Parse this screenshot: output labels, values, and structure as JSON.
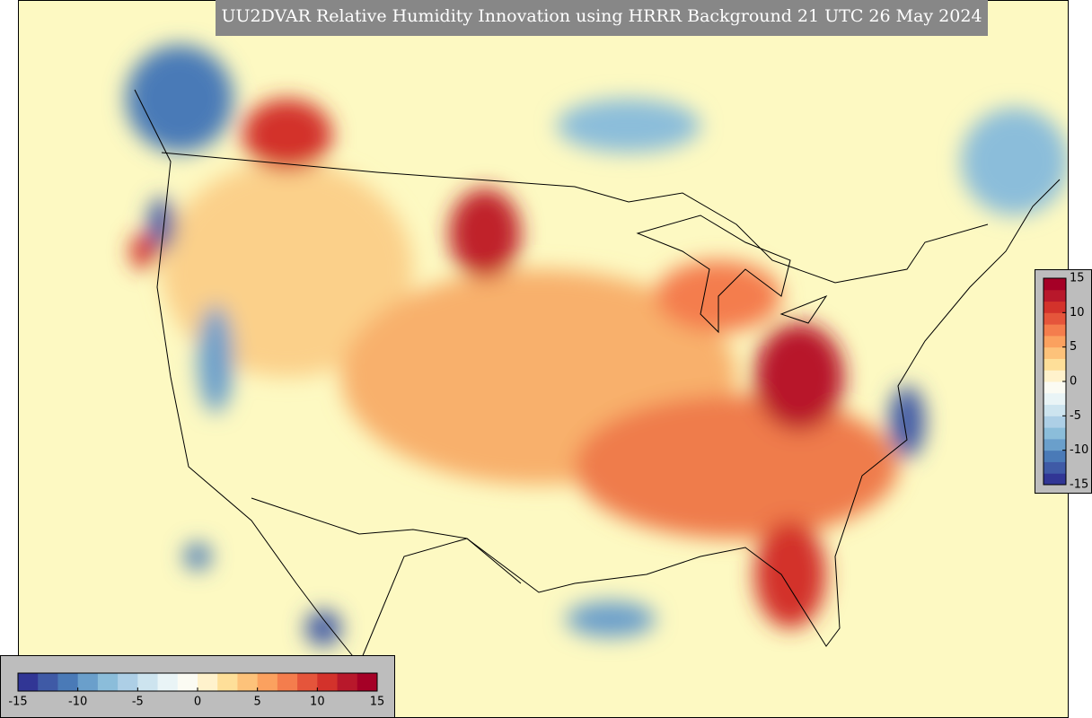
{
  "title": "UU2DVAR Relative Humidity Innovation using HRRR Background 21 UTC 26 May 2024",
  "horizontal_colorbar": {
    "limits": [
      -15,
      15
    ],
    "ticks": [
      -15,
      -10,
      -5,
      0,
      5,
      10,
      15
    ]
  },
  "vertical_colorbar": {
    "limits": [
      -15,
      15
    ],
    "ticks": [
      15,
      10,
      5,
      0,
      -5,
      -10,
      -15
    ]
  },
  "colors": [
    "#313695",
    "#3f5aa6",
    "#4a7ab7",
    "#6a9fcb",
    "#8bbdda",
    "#adcfe6",
    "#cde4ef",
    "#e9f4f6",
    "#fbfbf3",
    "#fff2cc",
    "#fedf99",
    "#fdc27a",
    "#fba15f",
    "#f47d4d",
    "#e5553b",
    "#d3322b",
    "#b8182b",
    "#a50026"
  ]
}
